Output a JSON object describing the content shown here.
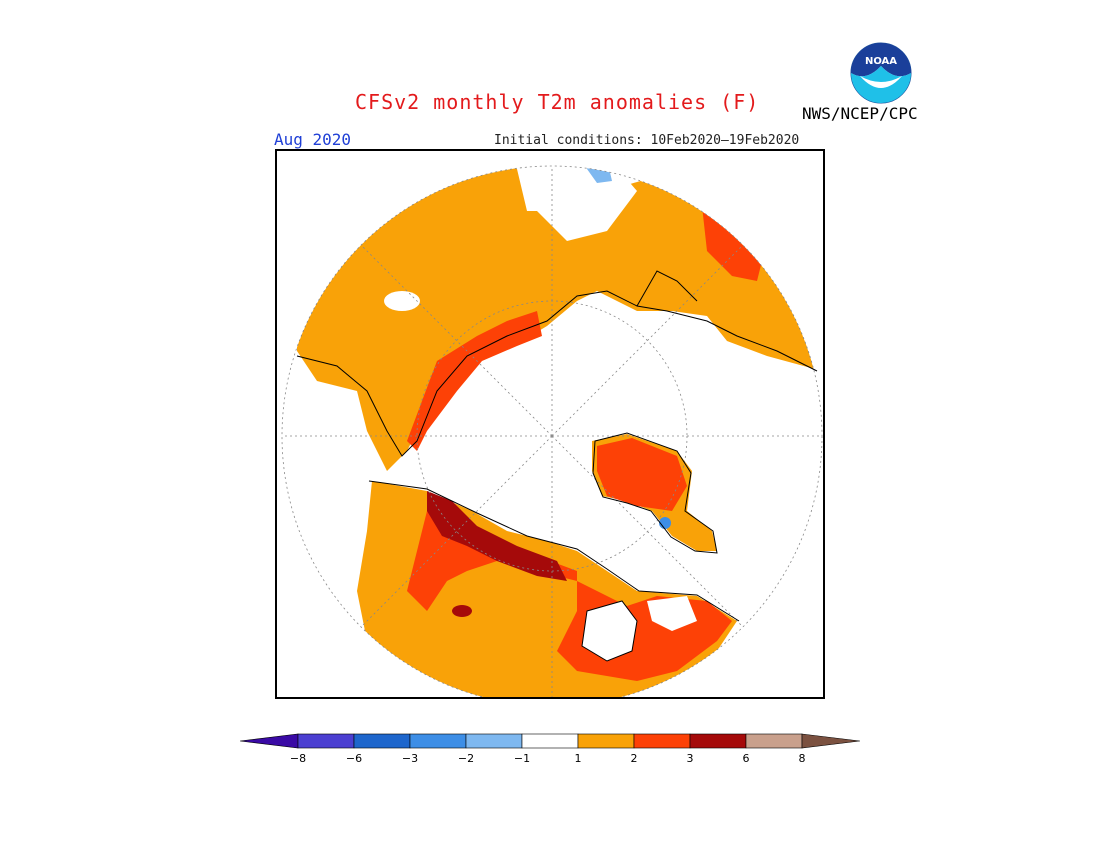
{
  "header": {
    "title": "CFSv2 monthly T2m anomalies (F)",
    "month": "Aug 2020",
    "initial_conditions": "Initial conditions: 10Feb2020–19Feb2020",
    "agency": "NWS/NCEP/CPC",
    "logo_text": "NOAA"
  },
  "colorbar": {
    "ticks": [
      "−8",
      "−6",
      "−3",
      "−2",
      "−1",
      "1",
      "2",
      "3",
      "6",
      "8"
    ],
    "colors": [
      "#3a0aa5",
      "#4b3fd1",
      "#1e66cc",
      "#3d8ee6",
      "#7eb8f0",
      "#ffffff",
      "#f9a208",
      "#fd4106",
      "#a50a0a",
      "#c9a08c",
      "#7b5140"
    ]
  },
  "map": {
    "projection": "north-polar-stereographic",
    "palette": {
      "anom_1_2": "#f9a208",
      "anom_2_3": "#fd4106",
      "anom_3_6": "#a50a0a",
      "anom_neg": "#7eb8f0",
      "coast": "#000000"
    }
  }
}
